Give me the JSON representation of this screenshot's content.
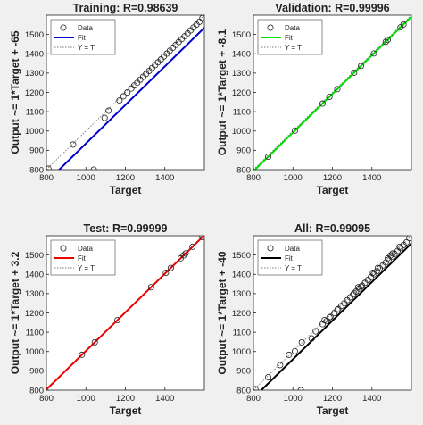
{
  "figure_background": "#f0f0f0",
  "chart_data": [
    {
      "type": "scatter",
      "title": "Training: R=0.98639",
      "xlabel": "Target",
      "ylabel": "Output ~= 1*Target + -65",
      "xlim": [
        800,
        1600
      ],
      "ylim": [
        800,
        1600
      ],
      "xticks": [
        800,
        1000,
        1200,
        1400
      ],
      "yticks": [
        800,
        900,
        1000,
        1100,
        1200,
        1300,
        1400,
        1500
      ],
      "grid": false,
      "legend": {
        "placement": "top-left",
        "entries": [
          "Data",
          "Fit",
          "Y = T"
        ]
      },
      "fit_color": "#0000cc",
      "fit": {
        "slope": 1,
        "intercept": -65
      },
      "series": [
        {
          "name": "Data",
          "x": [
            810,
            935,
            1040,
            1095,
            1115,
            1170,
            1190,
            1210,
            1230,
            1245,
            1260,
            1275,
            1290,
            1305,
            1320,
            1335,
            1350,
            1365,
            1380,
            1395,
            1410,
            1425,
            1440,
            1455,
            1470,
            1485,
            1500,
            1515,
            1530,
            1545,
            1560,
            1575,
            1590
          ],
          "y": [
            805,
            930,
            800,
            1068,
            1105,
            1158,
            1180,
            1200,
            1220,
            1236,
            1250,
            1266,
            1281,
            1296,
            1311,
            1326,
            1341,
            1356,
            1371,
            1386,
            1401,
            1416,
            1431,
            1446,
            1461,
            1476,
            1491,
            1506,
            1521,
            1536,
            1551,
            1566,
            1585
          ]
        }
      ]
    },
    {
      "type": "scatter",
      "title": "Validation: R=0.99996",
      "xlabel": "Target",
      "ylabel": "Output ~= 1*Target + -8.1",
      "xlim": [
        800,
        1600
      ],
      "ylim": [
        800,
        1600
      ],
      "xticks": [
        800,
        1000,
        1200,
        1400
      ],
      "yticks": [
        800,
        900,
        1000,
        1100,
        1200,
        1300,
        1400,
        1500
      ],
      "grid": false,
      "legend": {
        "placement": "top-left",
        "entries": [
          "Data",
          "Fit",
          "Y = T"
        ]
      },
      "fit_color": "#00dd00",
      "fit": {
        "slope": 1,
        "intercept": -8.1
      },
      "series": [
        {
          "name": "Data",
          "x": [
            875,
            1010,
            1150,
            1185,
            1225,
            1310,
            1345,
            1410,
            1470,
            1480,
            1545,
            1560
          ],
          "y": [
            867,
            1002,
            1142,
            1177,
            1217,
            1302,
            1337,
            1402,
            1462,
            1472,
            1537,
            1552
          ]
        }
      ]
    },
    {
      "type": "scatter",
      "title": "Test: R=0.99999",
      "xlabel": "Target",
      "ylabel": "Output ~= 1*Target + 3.2",
      "xlim": [
        800,
        1600
      ],
      "ylim": [
        800,
        1600
      ],
      "xticks": [
        800,
        1000,
        1200,
        1400
      ],
      "yticks": [
        800,
        900,
        1000,
        1100,
        1200,
        1300,
        1400,
        1500
      ],
      "grid": false,
      "legend": {
        "placement": "top-left",
        "entries": [
          "Data",
          "Fit",
          "Y = T"
        ]
      },
      "fit_color": "#ee0000",
      "fit": {
        "slope": 1,
        "intercept": 3.2
      },
      "series": [
        {
          "name": "Data",
          "x": [
            980,
            1045,
            1160,
            1330,
            1405,
            1430,
            1480,
            1495,
            1505,
            1540,
            1590
          ],
          "y": [
            983,
            1048,
            1163,
            1333,
            1408,
            1433,
            1483,
            1498,
            1508,
            1543,
            1593
          ]
        }
      ]
    },
    {
      "type": "scatter",
      "title": "All: R=0.99095",
      "xlabel": "Target",
      "ylabel": "Output ~= 1*Target + -40",
      "xlim": [
        800,
        1600
      ],
      "ylim": [
        800,
        1600
      ],
      "xticks": [
        800,
        1000,
        1200,
        1400
      ],
      "yticks": [
        800,
        900,
        1000,
        1100,
        1200,
        1300,
        1400,
        1500
      ],
      "grid": false,
      "legend": {
        "placement": "top-left",
        "entries": [
          "Data",
          "Fit",
          "Y = T"
        ]
      },
      "fit_color": "#000000",
      "fit": {
        "slope": 1,
        "intercept": -40
      },
      "series": [
        {
          "name": "Data",
          "x": [
            810,
            875,
            935,
            980,
            1010,
            1040,
            1045,
            1095,
            1115,
            1150,
            1160,
            1170,
            1185,
            1190,
            1210,
            1225,
            1230,
            1245,
            1260,
            1275,
            1290,
            1305,
            1310,
            1320,
            1330,
            1335,
            1345,
            1350,
            1365,
            1380,
            1395,
            1405,
            1410,
            1425,
            1430,
            1440,
            1455,
            1470,
            1480,
            1485,
            1495,
            1500,
            1505,
            1515,
            1530,
            1540,
            1545,
            1560,
            1575,
            1590
          ],
          "y": [
            805,
            867,
            930,
            983,
            1002,
            800,
            1048,
            1068,
            1105,
            1142,
            1163,
            1158,
            1177,
            1180,
            1200,
            1217,
            1220,
            1236,
            1250,
            1266,
            1281,
            1296,
            1302,
            1311,
            1333,
            1326,
            1337,
            1341,
            1356,
            1371,
            1386,
            1408,
            1401,
            1416,
            1433,
            1431,
            1446,
            1461,
            1483,
            1476,
            1498,
            1491,
            1508,
            1506,
            1521,
            1543,
            1536,
            1552,
            1566,
            1588
          ]
        }
      ]
    }
  ]
}
